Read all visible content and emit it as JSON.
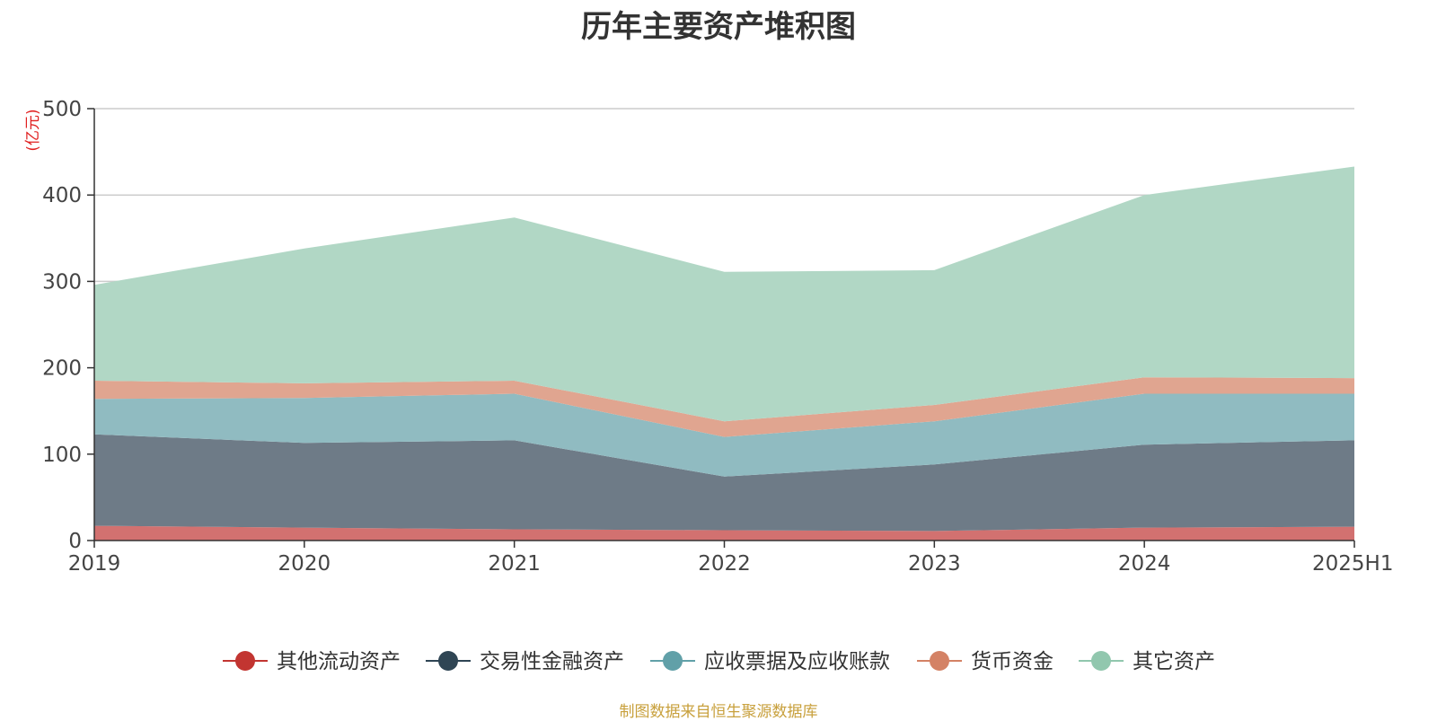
{
  "chart_data": {
    "type": "area",
    "stacked": true,
    "title": "历年主要资产堆积图",
    "unit_label": "(亿元)",
    "categories": [
      "2019",
      "2020",
      "2021",
      "2022",
      "2023",
      "2024",
      "2025H1"
    ],
    "ylim": [
      0,
      500
    ],
    "yticks": [
      0,
      100,
      200,
      300,
      400,
      500
    ],
    "grid": true,
    "legend_position": "bottom",
    "series": [
      {
        "name": "其他流动资产",
        "color": "#c23531",
        "fill": "#d27170",
        "values": [
          17,
          15,
          13,
          12,
          11,
          15,
          16
        ]
      },
      {
        "name": "交易性金融资产",
        "color": "#2f4554",
        "fill": "#6e7b87",
        "values": [
          106,
          98,
          103,
          62,
          77,
          96,
          100
        ]
      },
      {
        "name": "应收票据及应收账款",
        "color": "#61a0a8",
        "fill": "#90bbc1",
        "values": [
          41,
          52,
          54,
          46,
          50,
          59,
          54
        ]
      },
      {
        "name": "货币资金",
        "color": "#d48265",
        "fill": "#e0a590",
        "values": [
          21,
          17,
          15,
          18,
          19,
          19,
          18
        ]
      },
      {
        "name": "其它资产",
        "color": "#91c7ae",
        "fill": "#b1d7c5",
        "values": [
          111,
          156,
          189,
          173,
          156,
          211,
          245
        ]
      }
    ]
  },
  "source_text": "制图数据来自恒生聚源数据库"
}
